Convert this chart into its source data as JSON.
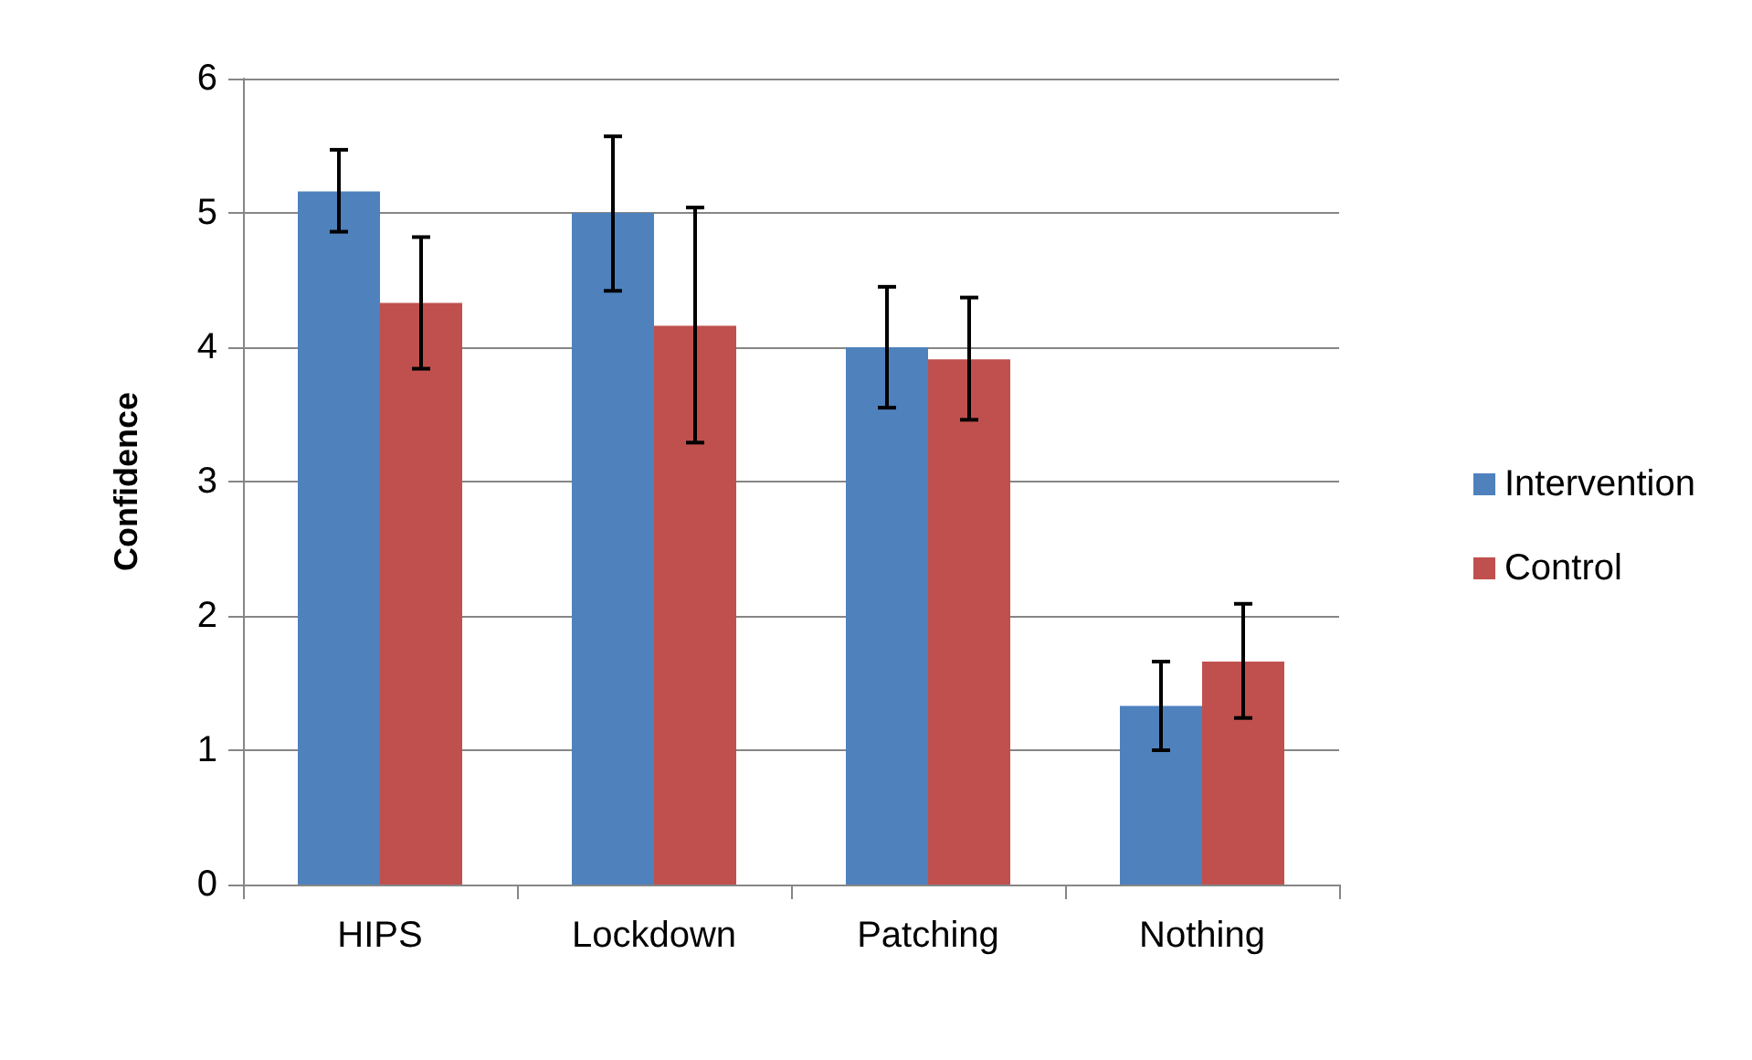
{
  "chart_data": {
    "type": "bar",
    "ylabel": "Confidence",
    "categories": [
      "HIPS",
      "Lockdown",
      "Patching",
      "Nothing"
    ],
    "series": [
      {
        "name": "Intervention",
        "color": "#4f81bd",
        "values": [
          5.16,
          5.0,
          4.0,
          1.33
        ],
        "errors": [
          [
            4.86,
            5.47
          ],
          [
            4.42,
            5.57
          ],
          [
            3.55,
            4.45
          ],
          [
            1.0,
            1.66
          ]
        ]
      },
      {
        "name": "Control",
        "color": "#c0504d",
        "values": [
          4.33,
          4.16,
          3.91,
          1.66
        ],
        "errors": [
          [
            3.84,
            4.82
          ],
          [
            3.29,
            5.04
          ],
          [
            3.46,
            4.37
          ],
          [
            1.24,
            2.09
          ]
        ]
      }
    ],
    "ylim": [
      0,
      6
    ],
    "yticks": [
      0,
      1,
      2,
      3,
      4,
      5,
      6
    ],
    "grid": "y",
    "legend": "right"
  }
}
